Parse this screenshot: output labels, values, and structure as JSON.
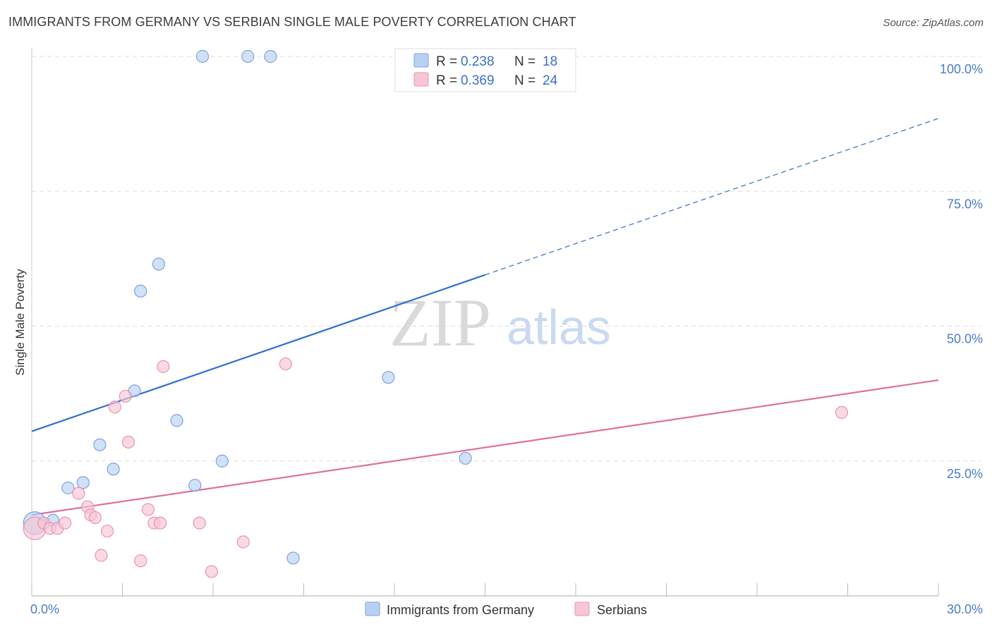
{
  "header": {
    "title": "IMMIGRANTS FROM GERMANY VS SERBIAN SINGLE MALE POVERTY CORRELATION CHART",
    "source": "Source: ZipAtlas.com"
  },
  "watermark": {
    "zip": "ZIP",
    "atlas": "atlas"
  },
  "colors": {
    "blue_fill": "#b8d1f3",
    "blue_stroke": "#7aa3df",
    "blue_line": "#2e6fd0",
    "pink_fill": "#f7c5d4",
    "pink_stroke": "#e994b0",
    "pink_line": "#e0709a",
    "grid": "#dddddd",
    "tick_label": "#4a7cc9"
  },
  "chart_data": {
    "type": "scatter",
    "title": "IMMIGRANTS FROM GERMANY VS SERBIAN SINGLE MALE POVERTY CORRELATION CHART",
    "xlabel": "",
    "ylabel": "Single Male Poverty",
    "xlim": [
      0,
      30
    ],
    "ylim": [
      0,
      100
    ],
    "x_tick_labels": [
      {
        "value": 0,
        "label": "0.0%"
      },
      {
        "value": 30,
        "label": "30.0%"
      }
    ],
    "y_tick_labels": [
      {
        "value": 25,
        "label": "25.0%"
      },
      {
        "value": 50,
        "label": "50.0%"
      },
      {
        "value": 75,
        "label": "75.0%"
      },
      {
        "value": 100,
        "label": "100.0%"
      }
    ],
    "grid": true,
    "legend_position": "top-center",
    "legend": [
      {
        "series": "Immigrants from Germany",
        "r_label": "R =",
        "r_value": "0.238",
        "n_label": "N =",
        "n_value": "18"
      },
      {
        "series": "Serbians",
        "r_label": "R =",
        "r_value": "0.369",
        "n_label": "N =",
        "n_value": "24"
      }
    ],
    "series": [
      {
        "name": "Immigrants from Germany",
        "color": "blue",
        "points": [
          {
            "x": 0.1,
            "y": 13.5,
            "big": true
          },
          {
            "x": 0.7,
            "y": 14.0
          },
          {
            "x": 1.2,
            "y": 20.0
          },
          {
            "x": 1.7,
            "y": 21.0
          },
          {
            "x": 2.25,
            "y": 28.0
          },
          {
            "x": 2.7,
            "y": 23.5
          },
          {
            "x": 3.4,
            "y": 38.0
          },
          {
            "x": 3.6,
            "y": 56.5
          },
          {
            "x": 4.2,
            "y": 61.5
          },
          {
            "x": 4.8,
            "y": 32.5
          },
          {
            "x": 5.4,
            "y": 20.5
          },
          {
            "x": 5.65,
            "y": 100.0
          },
          {
            "x": 6.3,
            "y": 25.0
          },
          {
            "x": 7.15,
            "y": 100.0
          },
          {
            "x": 7.9,
            "y": 100.0
          },
          {
            "x": 8.65,
            "y": 7.0
          },
          {
            "x": 11.8,
            "y": 40.5
          },
          {
            "x": 14.35,
            "y": 25.5
          }
        ],
        "trend": {
          "x0": 0,
          "y0": 30.5,
          "x_solid_end": 15.0,
          "x1": 30,
          "y1": 88.5
        }
      },
      {
        "name": "Serbians",
        "color": "pink",
        "points": [
          {
            "x": 0.1,
            "y": 12.5,
            "big": true
          },
          {
            "x": 0.4,
            "y": 13.5
          },
          {
            "x": 0.6,
            "y": 12.5
          },
          {
            "x": 0.85,
            "y": 12.5
          },
          {
            "x": 1.1,
            "y": 13.5
          },
          {
            "x": 1.55,
            "y": 19.0
          },
          {
            "x": 1.85,
            "y": 16.5
          },
          {
            "x": 1.95,
            "y": 15.0
          },
          {
            "x": 2.1,
            "y": 14.5
          },
          {
            "x": 2.3,
            "y": 7.5
          },
          {
            "x": 2.5,
            "y": 12.0
          },
          {
            "x": 2.75,
            "y": 35.0
          },
          {
            "x": 3.1,
            "y": 37.0
          },
          {
            "x": 3.2,
            "y": 28.5
          },
          {
            "x": 3.6,
            "y": 6.5
          },
          {
            "x": 3.85,
            "y": 16.0
          },
          {
            "x": 4.05,
            "y": 13.5
          },
          {
            "x": 4.25,
            "y": 13.5
          },
          {
            "x": 4.35,
            "y": 42.5
          },
          {
            "x": 5.55,
            "y": 13.5
          },
          {
            "x": 5.95,
            "y": 4.5
          },
          {
            "x": 7.0,
            "y": 10.0
          },
          {
            "x": 8.4,
            "y": 43.0
          },
          {
            "x": 26.8,
            "y": 34.0
          }
        ],
        "trend": {
          "x0": 0,
          "y0": 15.0,
          "x_solid_end": 30,
          "x1": 30,
          "y1": 40.0
        }
      }
    ]
  }
}
